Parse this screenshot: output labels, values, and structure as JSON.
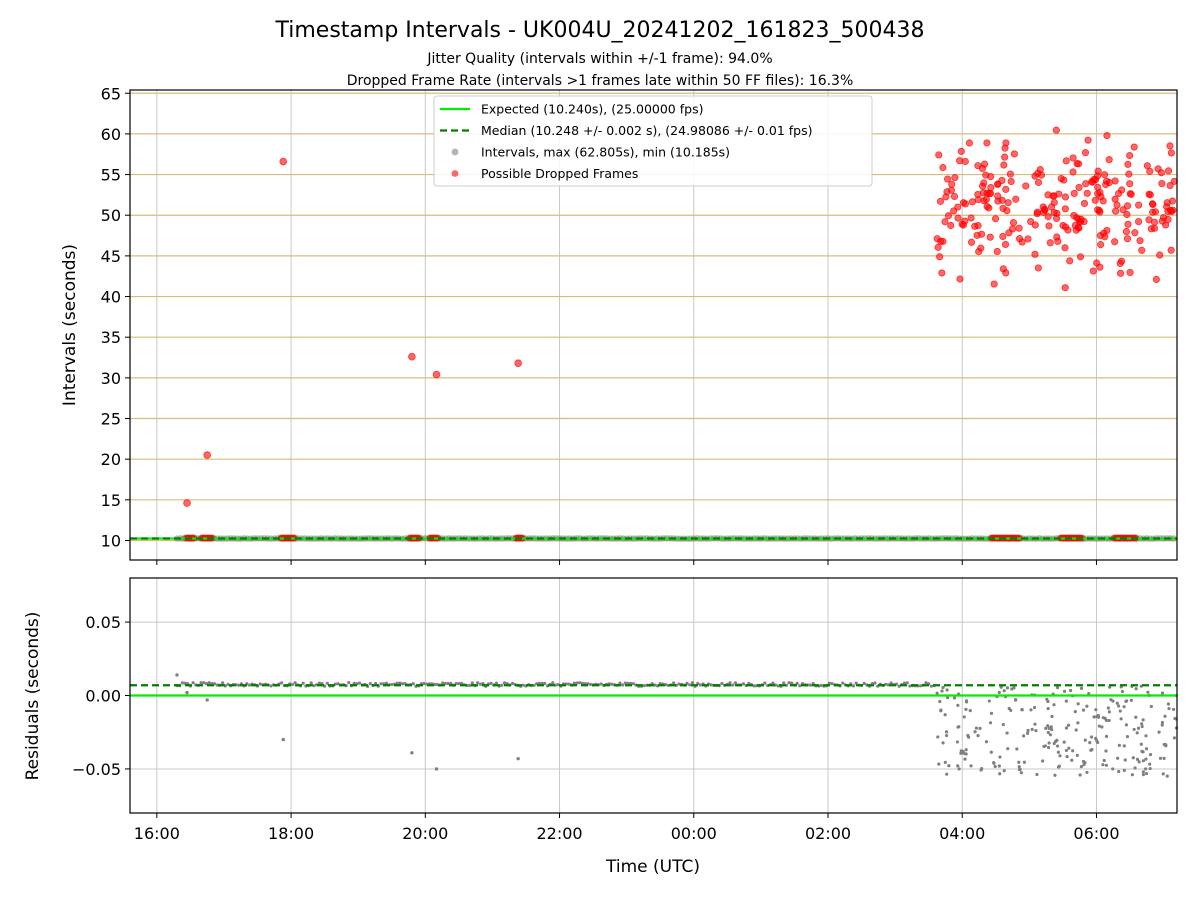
{
  "title": "Timestamp Intervals - UK004U_20241202_161823_500438",
  "subtitle_1": "Jitter Quality (intervals within +/-1 frame): 94.0%",
  "subtitle_2": "Dropped Frame Rate (intervals >1 frames late within 50 FF files): 16.3%",
  "colors": {
    "expected": "#00ee00",
    "median": "#007f00",
    "interval": "#808080",
    "dropped": "#ff0000",
    "hgrid_top": "#d8bd7a",
    "grid": "#c8c8c8"
  },
  "chart_data": [
    {
      "type": "scatter",
      "panel": "intervals",
      "ylabel": "Intervals (seconds)",
      "xlim": [
        "15:36",
        "07:12"
      ],
      "ylim": [
        7.6,
        65.4
      ],
      "yticks": [
        "10",
        "15",
        "20",
        "25",
        "30",
        "35",
        "40",
        "45",
        "50",
        "55",
        "60",
        "65"
      ],
      "ytick_values": [
        10,
        15,
        20,
        25,
        30,
        35,
        40,
        45,
        50,
        55,
        60,
        65
      ],
      "grid": "horizontal gold lines, vertical gray lines",
      "legend_position": "top-center",
      "legend": [
        {
          "label": "Expected (10.240s), (25.00000 fps)",
          "style": "solid-line",
          "color": "#00ee00"
        },
        {
          "label": "Median (10.248 +/- 0.002 s), (24.98086 +/- 0.01 fps)",
          "style": "dashed-line",
          "color": "#007f00"
        },
        {
          "label": "Intervals, max (62.805s), min (10.185s)",
          "style": "marker",
          "color": "#808080"
        },
        {
          "label": "Possible Dropped Frames",
          "style": "marker",
          "color": "#ff0000"
        }
      ],
      "expected_interval": 10.24,
      "median_interval": 10.248,
      "baseline_span": [
        "16:18",
        "07:12"
      ],
      "dropped_frame_outliers": [
        {
          "time": "16:27",
          "interval": 14.6
        },
        {
          "time": "16:45",
          "interval": 20.5
        },
        {
          "time": "17:53",
          "interval": 56.6
        },
        {
          "time": "19:48",
          "interval": 32.6
        },
        {
          "time": "20:10",
          "interval": 30.4
        },
        {
          "time": "21:23",
          "interval": 31.8
        }
      ],
      "dropped_frame_clusters_near_baseline": [
        [
          "16:26",
          "16:34"
        ],
        [
          "16:40",
          "16:50"
        ],
        [
          "17:51",
          "18:03"
        ],
        [
          "19:46",
          "19:55"
        ],
        [
          "20:04",
          "20:12"
        ],
        [
          "21:21",
          "21:28"
        ],
        [
          "04:26",
          "04:52"
        ],
        [
          "05:28",
          "05:48"
        ],
        [
          "06:16",
          "06:36"
        ]
      ],
      "dense_dropped_region": {
        "time_range": [
          "03:36",
          "07:12"
        ],
        "interval_range": [
          39.2,
          62.8
        ],
        "count": 250
      }
    },
    {
      "type": "scatter",
      "panel": "residuals",
      "ylabel": "Residuals (seconds)",
      "xlabel": "Time (UTC)",
      "xlim": [
        "15:36",
        "07:12"
      ],
      "xticks": [
        "16:00",
        "18:00",
        "20:00",
        "22:00",
        "00:00",
        "02:00",
        "04:00",
        "06:00"
      ],
      "ylim": [
        -0.08,
        0.08
      ],
      "yticks": [
        "−0.05",
        "0.00",
        "0.05"
      ],
      "ytick_values": [
        -0.05,
        0,
        0.05
      ],
      "grid": "both",
      "expected_residual": 0.0,
      "median_residual": 0.007,
      "baseline_residual_band": {
        "time_range": [
          "16:18",
          "03:36"
        ],
        "residual": 0.0075
      },
      "residual_outliers": [
        {
          "time": "16:18",
          "residual": 0.014
        },
        {
          "time": "16:27",
          "residual": 0.002
        },
        {
          "time": "16:45",
          "residual": -0.003
        },
        {
          "time": "17:53",
          "residual": -0.03
        },
        {
          "time": "19:48",
          "residual": -0.039
        },
        {
          "time": "20:10",
          "residual": -0.05
        },
        {
          "time": "21:23",
          "residual": -0.043
        }
      ],
      "late_region": {
        "time_range": [
          "03:36",
          "07:12"
        ],
        "residual_range": [
          -0.055,
          0.007
        ],
        "count": 250
      }
    }
  ]
}
